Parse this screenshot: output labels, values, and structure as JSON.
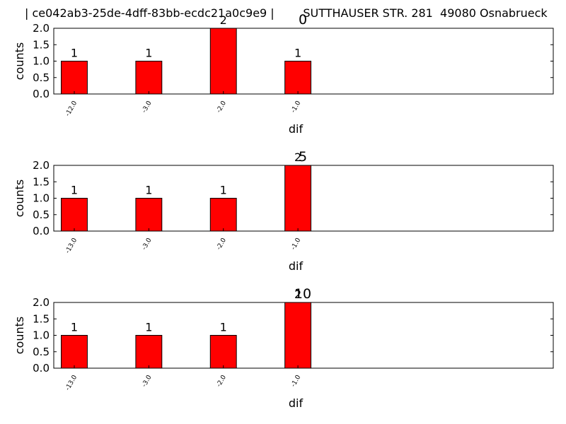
{
  "figure": {
    "suptitle": "| ce042ab3-25de-4dff-83bb-ecdc21a0c9e9 |        SUTTHAUSER STR. 281  49080 Osnabrueck"
  },
  "colors": {
    "bar": "#ff0000",
    "edge": "#000000"
  },
  "chart_data": [
    {
      "type": "bar",
      "title": "0",
      "xlabel": "dif",
      "ylabel": "counts",
      "categories": [
        "-12.0",
        "-3.0",
        "-2.0",
        "-1.0"
      ],
      "values": [
        1,
        1,
        2,
        1
      ],
      "data_labels": [
        "1",
        "1",
        "2",
        "1"
      ],
      "ylim": [
        0,
        2
      ],
      "yticks": [
        "0.0",
        "0.5",
        "1.0",
        "1.5",
        "2.0"
      ],
      "grid": false
    },
    {
      "type": "bar",
      "title": "5",
      "xlabel": "dif",
      "ylabel": "counts",
      "categories": [
        "-13.0",
        "-3.0",
        "-2.0",
        "-1.0"
      ],
      "values": [
        1,
        1,
        1,
        2
      ],
      "data_labels": [
        "1",
        "1",
        "1",
        "2"
      ],
      "ylim": [
        0,
        2
      ],
      "yticks": [
        "0.0",
        "0.5",
        "1.0",
        "1.5",
        "2.0"
      ],
      "grid": false
    },
    {
      "type": "bar",
      "title": "10",
      "xlabel": "dif",
      "ylabel": "counts",
      "categories": [
        "-13.0",
        "-3.0",
        "-2.0",
        "-1.0"
      ],
      "values": [
        1,
        1,
        1,
        2
      ],
      "data_labels": [
        "1",
        "1",
        "1",
        "2"
      ],
      "ylim": [
        0,
        2
      ],
      "yticks": [
        "0.0",
        "0.5",
        "1.0",
        "1.5",
        "2.0"
      ],
      "grid": false
    }
  ]
}
